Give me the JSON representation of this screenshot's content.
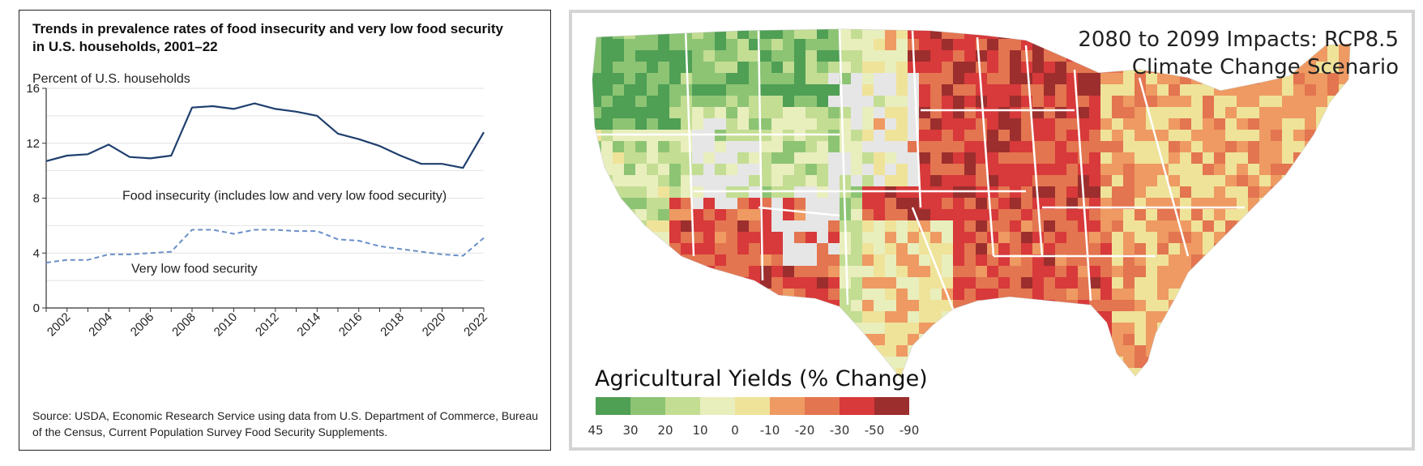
{
  "chart_panel": {
    "title": "Trends in prevalence rates of food insecurity and very low food security in U.S. households, 2001–22",
    "ylabel": "Percent of U.S. households",
    "source": "Source: USDA, Economic Research Service using data from U.S. Department of Commerce, Bureau of the Census, Current Population Survey Food Security Supplements."
  },
  "chart_data": {
    "type": "line",
    "title": "Trends in prevalence rates of food insecurity and very low food security in U.S. households, 2001–22",
    "xlabel": "",
    "ylabel": "Percent of U.S. households",
    "xlim": [
      2001,
      2022
    ],
    "ylim": [
      0,
      16
    ],
    "yticks": [
      0,
      4,
      8,
      12,
      16
    ],
    "xticks": [
      2002,
      2004,
      2006,
      2008,
      2010,
      2012,
      2014,
      2016,
      2018,
      2020,
      2022
    ],
    "grid": true,
    "x": [
      2001,
      2002,
      2003,
      2004,
      2005,
      2006,
      2007,
      2008,
      2009,
      2010,
      2011,
      2012,
      2013,
      2014,
      2015,
      2016,
      2017,
      2018,
      2019,
      2020,
      2021,
      2022
    ],
    "series": [
      {
        "name": "Food insecurity (includes low and very low food security)",
        "style": "solid",
        "color": "#1f3f6e",
        "values": [
          10.7,
          11.1,
          11.2,
          11.9,
          11.0,
          10.9,
          11.1,
          14.6,
          14.7,
          14.5,
          14.9,
          14.5,
          14.3,
          14.0,
          12.7,
          12.3,
          11.8,
          11.1,
          10.5,
          10.5,
          10.2,
          12.8
        ]
      },
      {
        "name": "Very low food security",
        "style": "dashed",
        "color": "#6a8fc7",
        "values": [
          3.3,
          3.5,
          3.5,
          3.9,
          3.9,
          4.0,
          4.1,
          5.7,
          5.7,
          5.4,
          5.7,
          5.7,
          5.6,
          5.6,
          5.0,
          4.9,
          4.5,
          4.3,
          4.1,
          3.9,
          3.8,
          5.1
        ]
      }
    ]
  },
  "map_panel": {
    "title_line1": "2080 to 2099 Impacts: RCP8.5",
    "title_line2": "Climate Change Scenario",
    "legend_title": "Agricultural Yields (% Change)",
    "legend_labels": [
      "45",
      "30",
      "20",
      "10",
      "0",
      "-10",
      "-20",
      "-30",
      "-50",
      "-90"
    ],
    "legend_colors": [
      "#4f9f55",
      "#8cc474",
      "#c3dd93",
      "#e9eebd",
      "#efe39a",
      "#ee9a62",
      "#e37550",
      "#d8393a",
      "#9c2e2e"
    ],
    "land_color": "#dcdcdc",
    "no_data_color": "#e6e6e6"
  }
}
